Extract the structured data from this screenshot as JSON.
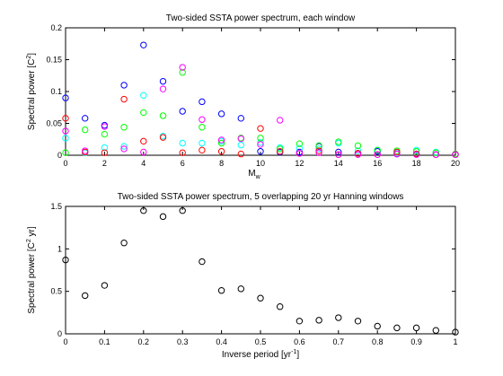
{
  "chart_data": [
    {
      "type": "scatter",
      "title": "Two-sided SSTA power spectrum, each window",
      "xlabel_main": "M",
      "xlabel_sub": "w",
      "ylabel_pre": "Spectral power [C",
      "ylabel_sup": "2",
      "ylabel_post": "]",
      "xlim": [
        0,
        20
      ],
      "ylim": [
        0,
        0.2
      ],
      "xticks": [
        0,
        2,
        4,
        6,
        8,
        10,
        12,
        14,
        16,
        18,
        20
      ],
      "yticks": [
        0,
        0.05,
        0.1,
        0.15,
        0.2
      ],
      "yticklabels": [
        "0",
        "0.05",
        "0.1",
        "0.15",
        "0.2"
      ],
      "marker": "open-circle",
      "series": [
        {
          "color": "#0000ff",
          "x": [
            0,
            1,
            2,
            3,
            4,
            5,
            6,
            7,
            8,
            9,
            10,
            11,
            12,
            13,
            14,
            15,
            16,
            17,
            18,
            19,
            20
          ],
          "y": [
            0.09,
            0.058,
            0.047,
            0.11,
            0.173,
            0.116,
            0.069,
            0.084,
            0.065,
            0.058,
            0.006,
            0.005,
            0.005,
            0.014,
            0.005,
            0.003,
            0.006,
            0.002,
            0.002,
            0.001,
            0.001
          ]
        },
        {
          "color": "#00ffff",
          "x": [
            0,
            1,
            2,
            3,
            4,
            5,
            6,
            7,
            8,
            9,
            10,
            11,
            12,
            13,
            14,
            15,
            16,
            17,
            18,
            19,
            20
          ],
          "y": [
            0.027,
            0.004,
            0.012,
            0.014,
            0.094,
            0.03,
            0.019,
            0.019,
            0.022,
            0.016,
            0.02,
            0.012,
            0.011,
            0.01,
            0.019,
            0.007,
            0.008,
            0.004,
            0.008,
            0.005,
            0.001
          ]
        },
        {
          "color": "#00ff00",
          "x": [
            0,
            1,
            2,
            3,
            4,
            5,
            6,
            7,
            8,
            9,
            10,
            11,
            12,
            13,
            14,
            15,
            16,
            17,
            18,
            19,
            20
          ],
          "y": [
            0.004,
            0.04,
            0.033,
            0.044,
            0.067,
            0.062,
            0.13,
            0.044,
            0.019,
            0.027,
            0.027,
            0.01,
            0.018,
            0.015,
            0.021,
            0.015,
            0.008,
            0.007,
            0.006,
            0.004,
            0.002
          ]
        },
        {
          "color": "#ff0000",
          "x": [
            0,
            1,
            2,
            3,
            4,
            5,
            6,
            7,
            8,
            9,
            10,
            11,
            12,
            13,
            14,
            15,
            16,
            17,
            18,
            19,
            20
          ],
          "y": [
            0.058,
            0.005,
            0.004,
            0.088,
            0.022,
            0.028,
            0.004,
            0.008,
            0.006,
            0.002,
            0.042,
            0.006,
            0.003,
            0.007,
            0.001,
            0.003,
            0.001,
            0.005,
            0.002,
            0.001,
            0.001
          ]
        },
        {
          "color": "#ff00ff",
          "x": [
            0,
            1,
            2,
            3,
            4,
            5,
            6,
            7,
            8,
            9,
            10,
            11,
            12,
            13,
            14,
            15,
            16,
            17,
            18,
            19,
            20
          ],
          "y": [
            0.038,
            0.007,
            0.045,
            0.01,
            0.005,
            0.104,
            0.138,
            0.056,
            0.024,
            0.026,
            0.017,
            0.055,
            0.003,
            0.004,
            0.001,
            0.001,
            0.001,
            0.002,
            0.001,
            0.001,
            0.001
          ]
        }
      ]
    },
    {
      "type": "scatter",
      "title": "Two-sided SSTA power spectrum, 5 overlapping 20 yr Hanning windows",
      "xlabel_pre": "Inverse period [yr",
      "xlabel_sup": "-1",
      "xlabel_post": "]",
      "ylabel_pre": "Spectral power [C",
      "ylabel_sup": "2",
      "ylabel_post": " yr]",
      "xlim": [
        0,
        1
      ],
      "ylim": [
        0,
        1.5
      ],
      "xticks": [
        0,
        0.1,
        0.2,
        0.3,
        0.4,
        0.5,
        0.6,
        0.7,
        0.8,
        0.9,
        1
      ],
      "xticklabels": [
        "0",
        "0.1",
        "0.2",
        "0.3",
        "0.4",
        "0.5",
        "0.6",
        "0.7",
        "0.8",
        "0.9",
        "1"
      ],
      "yticks": [
        0,
        0.5,
        1,
        1.5
      ],
      "yticklabels": [
        "0",
        "0.5",
        "1",
        "1.5"
      ],
      "marker": "open-circle",
      "series": [
        {
          "color": "#000000",
          "x": [
            0,
            0.05,
            0.1,
            0.15,
            0.2,
            0.25,
            0.3,
            0.35,
            0.4,
            0.45,
            0.5,
            0.55,
            0.6,
            0.65,
            0.7,
            0.75,
            0.8,
            0.85,
            0.9,
            0.95,
            1.0
          ],
          "y": [
            0.87,
            0.45,
            0.57,
            1.07,
            1.45,
            1.38,
            1.45,
            0.85,
            0.51,
            0.53,
            0.42,
            0.32,
            0.15,
            0.16,
            0.19,
            0.15,
            0.09,
            0.07,
            0.07,
            0.04,
            0.02
          ]
        }
      ]
    }
  ]
}
